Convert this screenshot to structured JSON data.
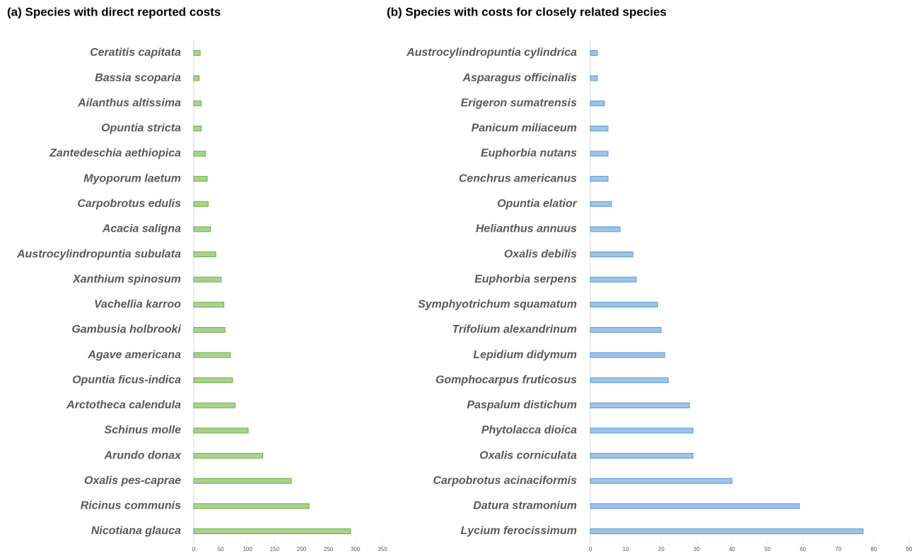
{
  "chart_data": [
    {
      "type": "bar",
      "orientation": "horizontal",
      "title": "(a) Species with direct reported costs",
      "categories": [
        "Ceratitis capitata",
        "Bassia scoparia",
        "Ailanthus altissima",
        "Opuntia stricta",
        "Zantedeschia aethiopica",
        "Myoporum laetum",
        "Carpobrotus edulis",
        "Acacia saligna",
        "Austrocylindropuntia subulata",
        "Xanthium spinosum",
        "Vachellia karroo",
        "Gambusia holbrooki",
        "Agave americana",
        "Opuntia ficus-indica",
        "Arctotheca calendula",
        "Schinus molle",
        "Arundo donax",
        "Oxalis pes-caprae",
        "Ricinus communis",
        "Nicotiana glauca"
      ],
      "values": [
        12,
        10,
        14,
        14,
        22,
        25,
        27,
        31,
        41,
        51,
        56,
        58,
        68,
        72,
        77,
        101,
        128,
        181,
        214,
        291
      ],
      "color": "#a9d18e",
      "edge_color": "#70ad47",
      "xlim": [
        0,
        350
      ],
      "xticks": [
        0,
        50,
        100,
        150,
        200,
        250,
        300,
        350
      ]
    },
    {
      "type": "bar",
      "orientation": "horizontal",
      "title": "(b) Species with costs for closely related species",
      "categories": [
        "Austrocylindropuntia cylindrica",
        "Asparagus officinalis",
        "Erigeron sumatrensis",
        "Panicum miliaceum",
        "Euphorbia nutans",
        "Cenchrus americanus",
        "Opuntia elatior",
        "Helianthus annuus",
        "Oxalis debilis",
        "Euphorbia serpens",
        "Symphyotrichum squamatum",
        "Trifolium alexandrinum",
        "Lepidium didymum",
        "Gomphocarpus fruticosus",
        "Paspalum distichum",
        "Phytolacca dioica",
        "Oxalis corniculata",
        "Carpobrotus acinaciformis",
        "Datura stramonium",
        "Lycium ferocissimum"
      ],
      "values": [
        2,
        2,
        4,
        5,
        5,
        5,
        6,
        8.4,
        12,
        13,
        19,
        20,
        21,
        22,
        28,
        29,
        29,
        40,
        59,
        77
      ],
      "color": "#9dc3e6",
      "edge_color": "#5b9bd5",
      "xlim": [
        0,
        90
      ],
      "xticks": [
        0,
        10,
        20,
        30,
        40,
        50,
        60,
        70,
        80,
        90
      ]
    }
  ]
}
